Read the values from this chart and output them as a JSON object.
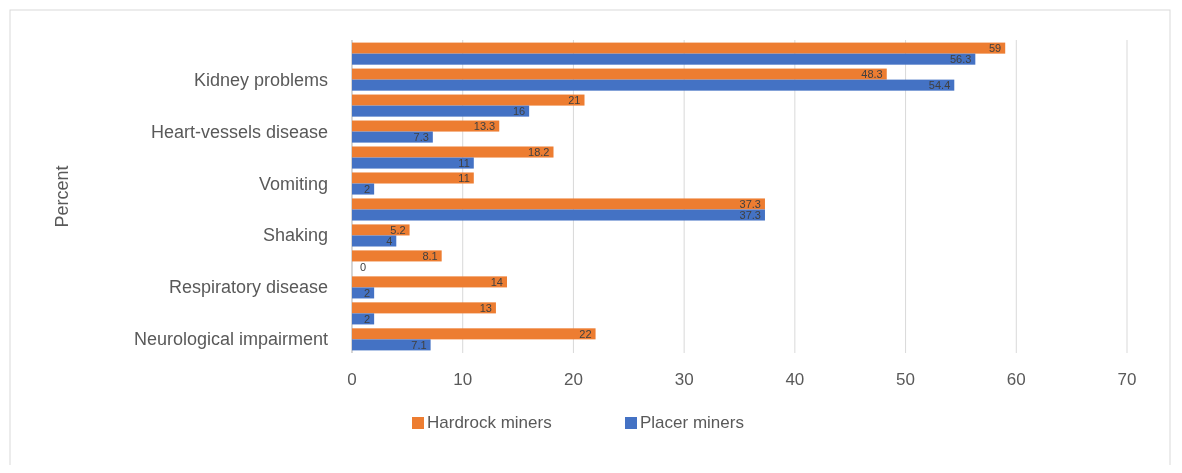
{
  "chart_data": {
    "type": "bar",
    "orientation": "horizontal",
    "ylabel": "Percent",
    "categories": [
      null,
      "Kidney problems",
      null,
      "Heart-vessels disease",
      null,
      "Vomiting",
      null,
      "Shaking",
      null,
      "Respiratory disease",
      null,
      "Neurological impairment"
    ],
    "series": [
      {
        "name": "Hardrock miners",
        "color": "#ed7d31",
        "values": [
          59,
          48.3,
          21,
          13.3,
          18.2,
          11,
          37.3,
          5.2,
          8.1,
          14,
          13,
          22
        ]
      },
      {
        "name": "Placer miners",
        "color": "#4472c4",
        "values": [
          56.3,
          54.4,
          16,
          7.3,
          11,
          2,
          37.3,
          4,
          0,
          2,
          2,
          7.1
        ]
      }
    ],
    "xlim": [
      0,
      70
    ],
    "xticks": [
      0,
      10,
      20,
      30,
      40,
      50,
      60,
      70
    ],
    "grid": "x",
    "data_labels": true,
    "legend": "bottom"
  }
}
